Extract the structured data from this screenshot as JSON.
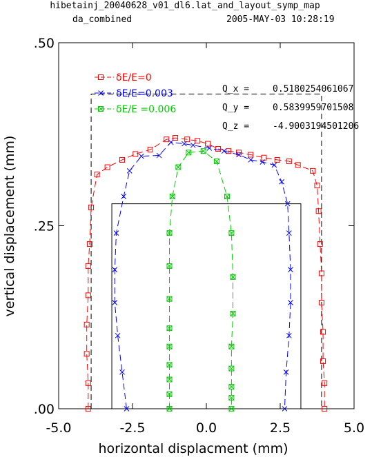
{
  "header": {
    "line1": "hibetainj_20040628_v01_dl6.lat_and_layout_symp_map",
    "line2_left": "da_combined",
    "line2_right": "2005-MAY-03  10:28:19"
  },
  "chart_data": {
    "type": "line",
    "xlabel": "horizontal displacment (mm)",
    "ylabel": "vertical displacement (mm)",
    "xlim": [
      -5.0,
      5.0
    ],
    "ylim": [
      0.0,
      0.5
    ],
    "x_ticks": [
      "-5.0",
      "-2.5",
      "0.0",
      "2.5",
      "5.0"
    ],
    "y_ticks": [
      ".00",
      ".25",
      ".50"
    ],
    "x_tick_values": [
      -5.0,
      -2.5,
      0.0,
      2.5,
      5.0
    ],
    "y_tick_values": [
      0.0,
      0.25,
      0.5
    ],
    "grid": false,
    "legend_position": "top-left",
    "series": [
      {
        "name": "δE/E=0",
        "color": "#ff0000",
        "marker": "square",
        "points": [
          [
            -4.0,
            0.0
          ],
          [
            -4.0,
            0.035
          ],
          [
            -4.05,
            0.075
          ],
          [
            -4.05,
            0.115
          ],
          [
            -4.0,
            0.155
          ],
          [
            -4.0,
            0.195
          ],
          [
            -3.95,
            0.225
          ],
          [
            -3.9,
            0.275
          ],
          [
            -3.7,
            0.32
          ],
          [
            -3.35,
            0.33
          ],
          [
            -2.85,
            0.34
          ],
          [
            -2.4,
            0.348
          ],
          [
            -1.9,
            0.354
          ],
          [
            -1.35,
            0.368
          ],
          [
            -1.05,
            0.37
          ],
          [
            -0.65,
            0.368
          ],
          [
            -0.3,
            0.366
          ],
          [
            0.05,
            0.362
          ],
          [
            0.4,
            0.355
          ],
          [
            0.75,
            0.352
          ],
          [
            1.1,
            0.35
          ],
          [
            1.5,
            0.347
          ],
          [
            1.95,
            0.343
          ],
          [
            2.4,
            0.34
          ],
          [
            2.8,
            0.338
          ],
          [
            3.1,
            0.333
          ],
          [
            3.6,
            0.325
          ],
          [
            3.75,
            0.305
          ],
          [
            3.8,
            0.27
          ],
          [
            3.85,
            0.225
          ],
          [
            3.9,
            0.185
          ],
          [
            3.9,
            0.145
          ],
          [
            3.95,
            0.105
          ],
          [
            3.95,
            0.065
          ],
          [
            4.0,
            0.035
          ],
          [
            4.0,
            0.0
          ]
        ]
      },
      {
        "name": "δE/E=0.003",
        "color": "#0000ff",
        "marker": "x",
        "points": [
          [
            -2.7,
            0.0
          ],
          [
            -2.85,
            0.05
          ],
          [
            -3.0,
            0.1
          ],
          [
            -3.1,
            0.145
          ],
          [
            -3.1,
            0.19
          ],
          [
            -3.05,
            0.24
          ],
          [
            -2.8,
            0.29
          ],
          [
            -2.6,
            0.325
          ],
          [
            -2.2,
            0.345
          ],
          [
            -1.6,
            0.346
          ],
          [
            -1.2,
            0.364
          ],
          [
            -0.75,
            0.362
          ],
          [
            -0.45,
            0.36
          ],
          [
            0.1,
            0.356
          ],
          [
            0.6,
            0.352
          ],
          [
            1.1,
            0.347
          ],
          [
            1.5,
            0.34
          ],
          [
            1.9,
            0.337
          ],
          [
            2.3,
            0.333
          ],
          [
            2.55,
            0.31
          ],
          [
            2.75,
            0.28
          ],
          [
            2.8,
            0.24
          ],
          [
            2.85,
            0.19
          ],
          [
            2.85,
            0.145
          ],
          [
            2.8,
            0.1
          ],
          [
            2.7,
            0.05
          ],
          [
            2.65,
            0.0
          ]
        ]
      },
      {
        "name": "δE/E =0.006",
        "color": "#00cc00",
        "marker": "square-x",
        "points": [
          [
            -1.25,
            0.0
          ],
          [
            -1.25,
            0.02
          ],
          [
            -1.25,
            0.04
          ],
          [
            -1.25,
            0.06
          ],
          [
            -1.25,
            0.085
          ],
          [
            -1.25,
            0.11
          ],
          [
            -1.25,
            0.15
          ],
          [
            -1.25,
            0.195
          ],
          [
            -1.25,
            0.24
          ],
          [
            -1.15,
            0.29
          ],
          [
            -0.95,
            0.33
          ],
          [
            -0.6,
            0.35
          ],
          [
            -0.1,
            0.352
          ],
          [
            0.35,
            0.338
          ],
          [
            0.7,
            0.29
          ],
          [
            0.85,
            0.24
          ],
          [
            0.9,
            0.18
          ],
          [
            0.9,
            0.13
          ],
          [
            0.85,
            0.085
          ],
          [
            0.85,
            0.055
          ],
          [
            0.85,
            0.03
          ],
          [
            0.85,
            0.015
          ],
          [
            0.85,
            0.0
          ]
        ]
      }
    ],
    "annotations": [
      {
        "label": "Q_x  =",
        "value": "0.5180254061067"
      },
      {
        "label": "Q_y  =",
        "value": "0.5839959701508"
      },
      {
        "label": "Q_z  =",
        "value": "-4.9003194501206"
      }
    ],
    "apertures": [
      {
        "style": "dashed",
        "color": "#000000",
        "x": [
          -3.9,
          3.9
        ],
        "y": [
          0.0,
          0.43
        ]
      },
      {
        "style": "solid",
        "color": "#000000",
        "x": [
          -3.2,
          3.2
        ],
        "y": [
          0.0,
          0.28
        ]
      }
    ]
  }
}
